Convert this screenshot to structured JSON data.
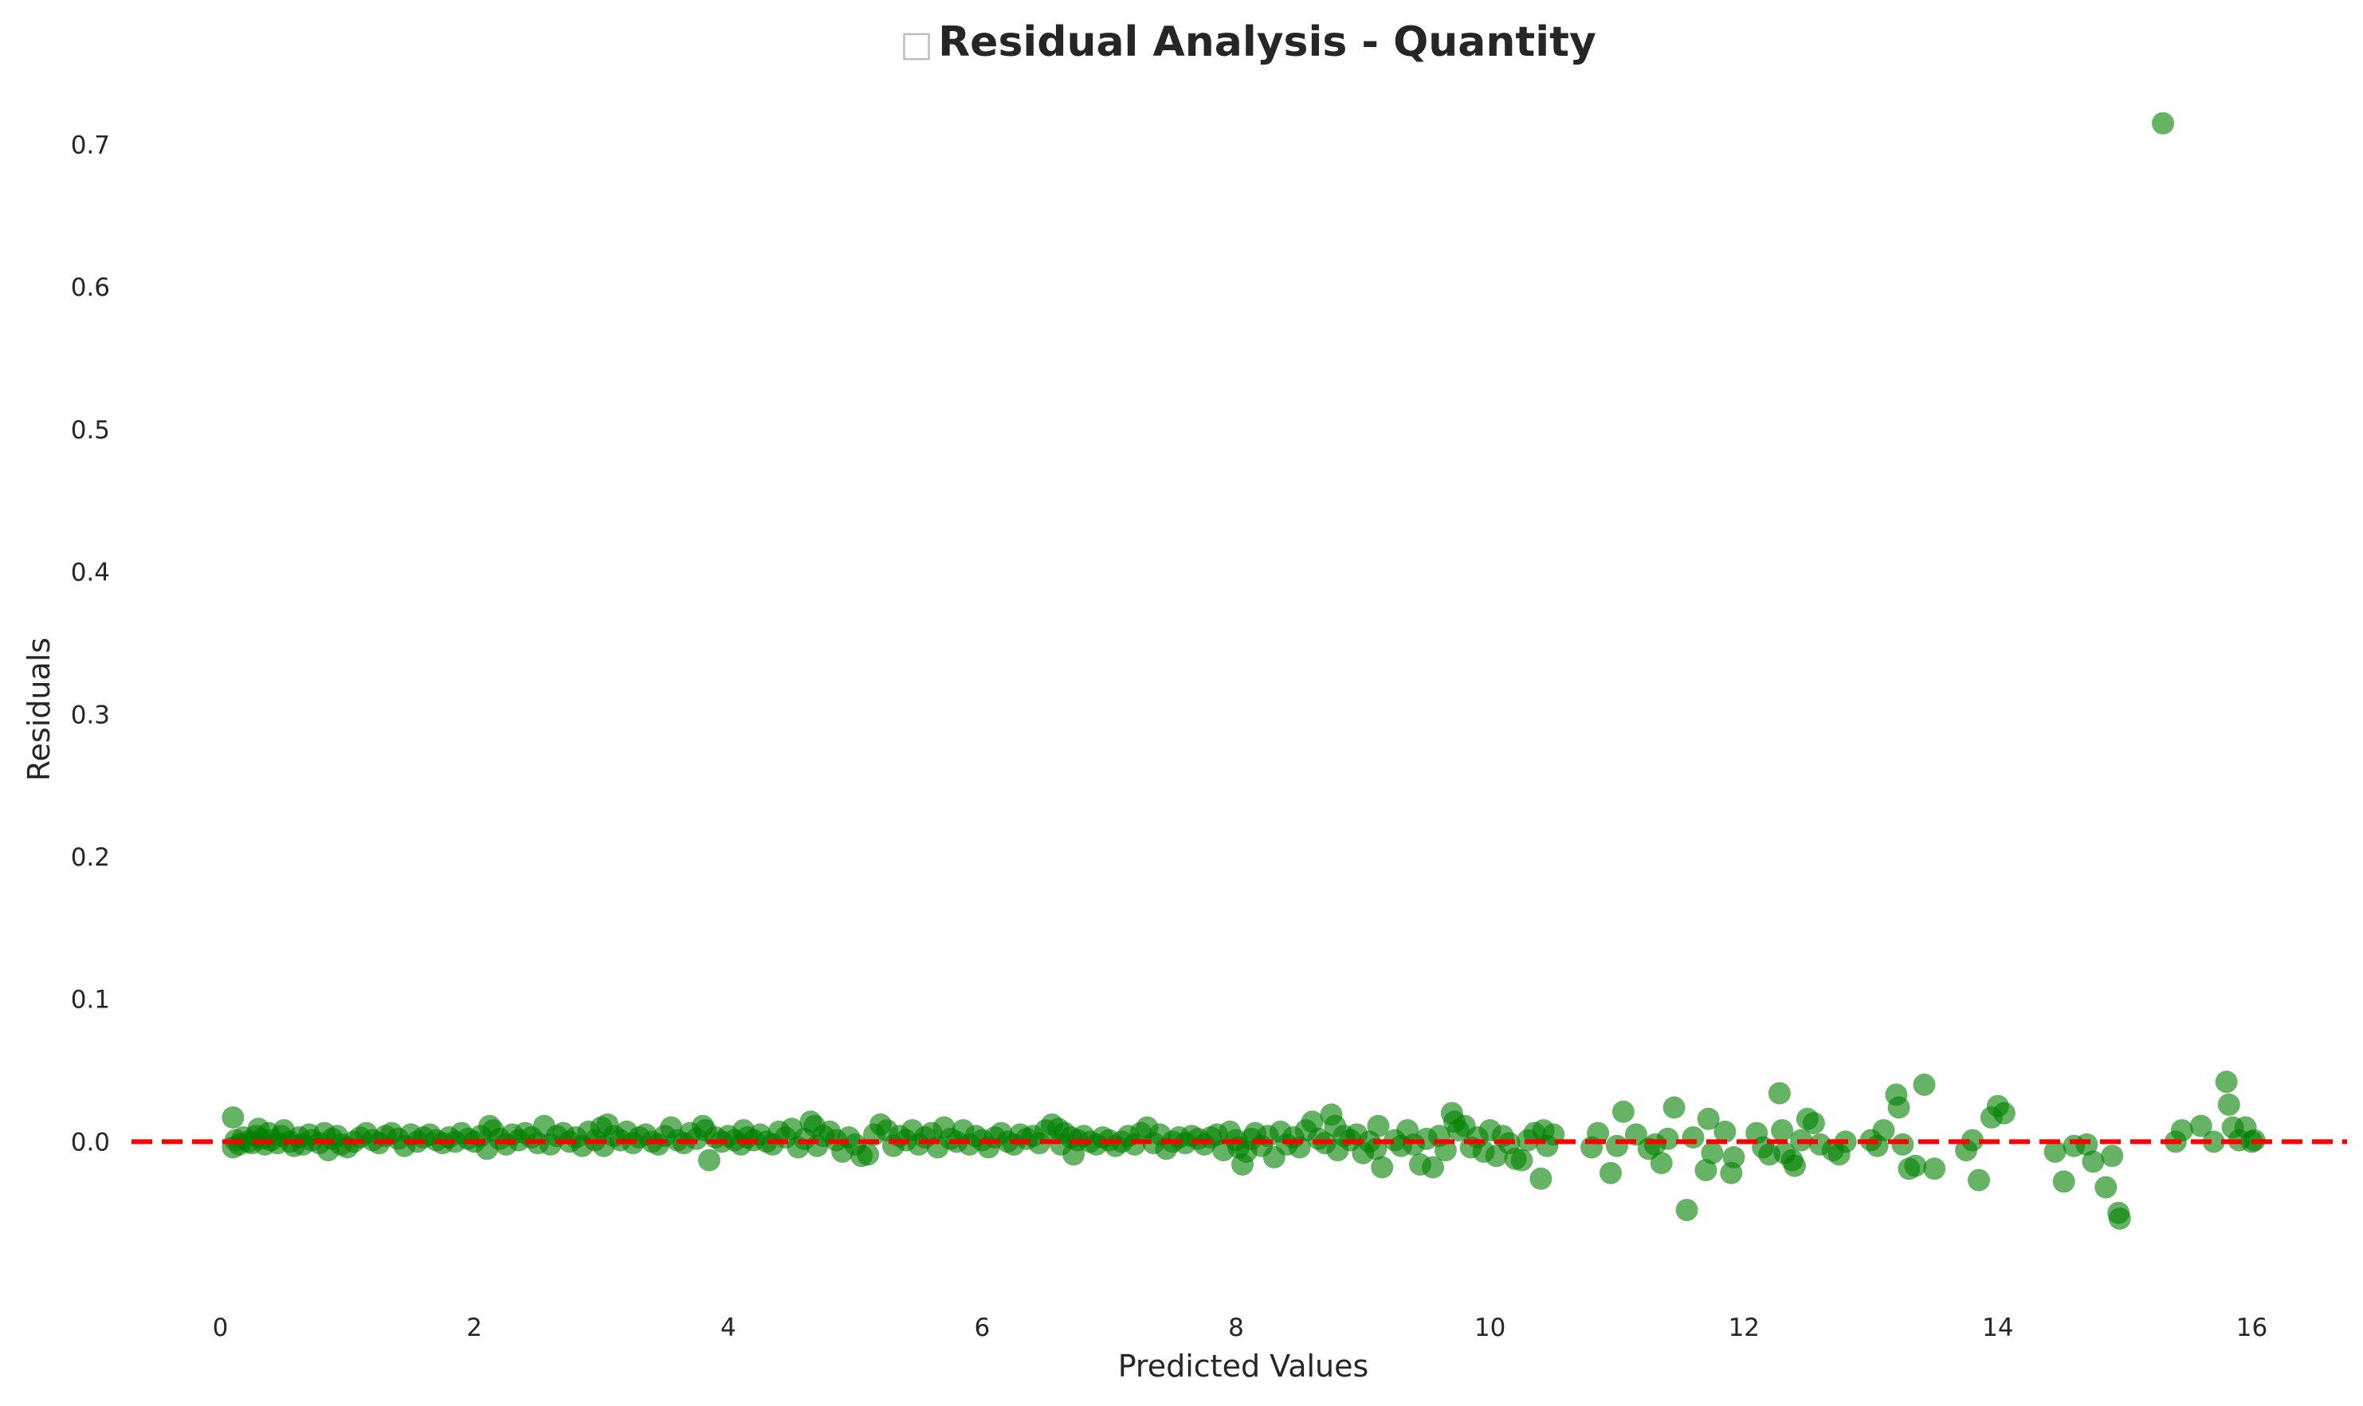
{
  "chart_data": {
    "type": "scatter",
    "title": "Residual Analysis - Quantity",
    "title_icon": "placeholder-box-icon",
    "xlabel": "Predicted Values",
    "ylabel": "Residuals",
    "xlim": [
      -0.7,
      16.75
    ],
    "ylim": [
      -0.105,
      0.74
    ],
    "xticks": [
      0,
      2,
      4,
      6,
      8,
      10,
      12,
      14,
      16
    ],
    "yticks": [
      0.0,
      0.1,
      0.2,
      0.3,
      0.4,
      0.5,
      0.6,
      0.7
    ],
    "ytick_labels": [
      "0.0",
      "0.1",
      "0.2",
      "0.3",
      "0.4",
      "0.5",
      "0.6",
      "0.7"
    ],
    "grid": false,
    "legend": "none",
    "point_color": "#008000",
    "point_opacity": 0.6,
    "reference_line": {
      "y": 0,
      "style": "dashed",
      "color": "#ff0000"
    },
    "points": [
      [
        0.1,
        0.017
      ],
      [
        0.1,
        -0.004
      ],
      [
        0.12,
        0.001
      ],
      [
        0.15,
        -0.002
      ],
      [
        0.18,
        0.003
      ],
      [
        0.22,
        0.0
      ],
      [
        0.25,
        -0.001
      ],
      [
        0.28,
        0.004
      ],
      [
        0.3,
        0.009
      ],
      [
        0.32,
        0.002
      ],
      [
        0.35,
        -0.002
      ],
      [
        0.38,
        0.006
      ],
      [
        0.4,
        0.001
      ],
      [
        0.45,
        -0.001
      ],
      [
        0.48,
        0.004
      ],
      [
        0.5,
        0.008
      ],
      [
        0.55,
        0.0
      ],
      [
        0.58,
        -0.003
      ],
      [
        0.62,
        0.003
      ],
      [
        0.65,
        -0.002
      ],
      [
        0.7,
        0.005
      ],
      [
        0.72,
        0.001
      ],
      [
        0.78,
        -0.001
      ],
      [
        0.82,
        0.006
      ],
      [
        0.85,
        -0.006
      ],
      [
        0.88,
        0.002
      ],
      [
        0.92,
        0.004
      ],
      [
        0.95,
        -0.002
      ],
      [
        1.0,
        -0.004
      ],
      [
        1.05,
        0.0
      ],
      [
        1.1,
        0.003
      ],
      [
        1.15,
        0.006
      ],
      [
        1.2,
        0.001
      ],
      [
        1.25,
        -0.001
      ],
      [
        1.3,
        0.004
      ],
      [
        1.35,
        0.006
      ],
      [
        1.4,
        0.002
      ],
      [
        1.45,
        -0.003
      ],
      [
        1.5,
        0.005
      ],
      [
        1.55,
        0.0
      ],
      [
        1.6,
        0.003
      ],
      [
        1.65,
        0.005
      ],
      [
        1.7,
        0.001
      ],
      [
        1.75,
        -0.001
      ],
      [
        1.8,
        0.003
      ],
      [
        1.85,
        0.0
      ],
      [
        1.9,
        0.006
      ],
      [
        1.95,
        0.002
      ],
      [
        2.0,
        0.0
      ],
      [
        2.05,
        0.004
      ],
      [
        2.1,
        -0.005
      ],
      [
        2.12,
        0.011
      ],
      [
        2.15,
        0.008
      ],
      [
        2.2,
        0.002
      ],
      [
        2.25,
        -0.002
      ],
      [
        2.3,
        0.005
      ],
      [
        2.35,
        0.001
      ],
      [
        2.4,
        0.006
      ],
      [
        2.45,
        0.003
      ],
      [
        2.5,
        -0.001
      ],
      [
        2.55,
        0.011
      ],
      [
        2.6,
        -0.002
      ],
      [
        2.65,
        0.004
      ],
      [
        2.7,
        0.006
      ],
      [
        2.75,
        0.0
      ],
      [
        2.8,
        0.003
      ],
      [
        2.85,
        -0.003
      ],
      [
        2.9,
        0.007
      ],
      [
        2.95,
        0.001
      ],
      [
        3.0,
        0.01
      ],
      [
        3.02,
        -0.003
      ],
      [
        3.05,
        0.012
      ],
      [
        3.1,
        0.004
      ],
      [
        3.15,
        0.001
      ],
      [
        3.2,
        0.007
      ],
      [
        3.25,
        -0.001
      ],
      [
        3.3,
        0.003
      ],
      [
        3.35,
        0.005
      ],
      [
        3.4,
        0.0
      ],
      [
        3.45,
        -0.002
      ],
      [
        3.5,
        0.004
      ],
      [
        3.55,
        0.01
      ],
      [
        3.6,
        0.001
      ],
      [
        3.65,
        -0.001
      ],
      [
        3.7,
        0.006
      ],
      [
        3.75,
        0.002
      ],
      [
        3.8,
        0.011
      ],
      [
        3.82,
        0.008
      ],
      [
        3.85,
        -0.013
      ],
      [
        3.9,
        0.003
      ],
      [
        3.95,
        0.0
      ],
      [
        4.0,
        0.004
      ],
      [
        4.05,
        0.001
      ],
      [
        4.1,
        -0.002
      ],
      [
        4.12,
        0.008
      ],
      [
        4.15,
        0.003
      ],
      [
        4.2,
        0.001
      ],
      [
        4.25,
        0.005
      ],
      [
        4.3,
        0.0
      ],
      [
        4.35,
        -0.002
      ],
      [
        4.4,
        0.007
      ],
      [
        4.45,
        0.003
      ],
      [
        4.5,
        0.009
      ],
      [
        4.55,
        -0.004
      ],
      [
        4.6,
        0.002
      ],
      [
        4.65,
        0.014
      ],
      [
        4.68,
        0.011
      ],
      [
        4.7,
        -0.003
      ],
      [
        4.75,
        0.004
      ],
      [
        4.8,
        0.007
      ],
      [
        4.85,
        0.001
      ],
      [
        4.9,
        -0.007
      ],
      [
        4.95,
        0.003
      ],
      [
        5.0,
        -0.002
      ],
      [
        5.05,
        -0.01
      ],
      [
        5.1,
        -0.009
      ],
      [
        5.15,
        0.005
      ],
      [
        5.2,
        0.012
      ],
      [
        5.25,
        0.008
      ],
      [
        5.3,
        -0.003
      ],
      [
        5.35,
        0.004
      ],
      [
        5.4,
        0.001
      ],
      [
        5.45,
        0.008
      ],
      [
        5.5,
        -0.002
      ],
      [
        5.55,
        0.003
      ],
      [
        5.6,
        0.006
      ],
      [
        5.65,
        -0.004
      ],
      [
        5.7,
        0.01
      ],
      [
        5.75,
        0.002
      ],
      [
        5.8,
        0.0
      ],
      [
        5.85,
        0.008
      ],
      [
        5.9,
        -0.002
      ],
      [
        5.95,
        0.004
      ],
      [
        6.0,
        0.001
      ],
      [
        6.05,
        -0.004
      ],
      [
        6.1,
        0.003
      ],
      [
        6.15,
        0.006
      ],
      [
        6.2,
        0.0
      ],
      [
        6.25,
        -0.002
      ],
      [
        6.3,
        0.005
      ],
      [
        6.35,
        0.002
      ],
      [
        6.4,
        0.004
      ],
      [
        6.45,
        -0.001
      ],
      [
        6.5,
        0.008
      ],
      [
        6.55,
        0.012
      ],
      [
        6.6,
        0.009
      ],
      [
        6.62,
        -0.002
      ],
      [
        6.65,
        0.006
      ],
      [
        6.7,
        0.003
      ],
      [
        6.72,
        -0.009
      ],
      [
        6.75,
        0.001
      ],
      [
        6.8,
        0.004
      ],
      [
        6.85,
        0.0
      ],
      [
        6.9,
        -0.002
      ],
      [
        6.95,
        0.003
      ],
      [
        7.0,
        0.001
      ],
      [
        7.05,
        -0.003
      ],
      [
        7.1,
        0.0
      ],
      [
        7.15,
        0.004
      ],
      [
        7.2,
        -0.002
      ],
      [
        7.25,
        0.006
      ],
      [
        7.3,
        0.01
      ],
      [
        7.35,
        -0.001
      ],
      [
        7.4,
        0.005
      ],
      [
        7.45,
        -0.005
      ],
      [
        7.5,
        0.0
      ],
      [
        7.55,
        0.003
      ],
      [
        7.6,
        -0.001
      ],
      [
        7.65,
        0.004
      ],
      [
        7.7,
        0.002
      ],
      [
        7.75,
        -0.002
      ],
      [
        7.8,
        0.003
      ],
      [
        7.85,
        0.005
      ],
      [
        7.9,
        -0.006
      ],
      [
        7.95,
        0.007
      ],
      [
        8.0,
        0.001
      ],
      [
        8.02,
        -0.004
      ],
      [
        8.05,
        -0.016
      ],
      [
        8.08,
        -0.007
      ],
      [
        8.12,
        0.002
      ],
      [
        8.15,
        0.006
      ],
      [
        8.2,
        -0.003
      ],
      [
        8.25,
        0.004
      ],
      [
        8.3,
        -0.011
      ],
      [
        8.35,
        0.007
      ],
      [
        8.4,
        -0.002
      ],
      [
        8.45,
        0.003
      ],
      [
        8.5,
        -0.004
      ],
      [
        8.55,
        0.008
      ],
      [
        8.6,
        0.014
      ],
      [
        8.65,
        0.002
      ],
      [
        8.7,
        -0.001
      ],
      [
        8.75,
        0.019
      ],
      [
        8.78,
        0.011
      ],
      [
        8.8,
        -0.006
      ],
      [
        8.85,
        0.004
      ],
      [
        8.9,
        0.001
      ],
      [
        8.95,
        0.005
      ],
      [
        9.0,
        -0.008
      ],
      [
        9.05,
        0.0
      ],
      [
        9.1,
        -0.005
      ],
      [
        9.12,
        0.011
      ],
      [
        9.15,
        -0.018
      ],
      [
        9.25,
        0.001
      ],
      [
        9.3,
        -0.003
      ],
      [
        9.35,
        0.008
      ],
      [
        9.4,
        -0.002
      ],
      [
        9.45,
        -0.016
      ],
      [
        9.5,
        0.002
      ],
      [
        9.55,
        -0.018
      ],
      [
        9.6,
        0.004
      ],
      [
        9.65,
        -0.006
      ],
      [
        9.7,
        0.02
      ],
      [
        9.72,
        0.014
      ],
      [
        9.75,
        0.008
      ],
      [
        9.8,
        0.011
      ],
      [
        9.85,
        -0.004
      ],
      [
        9.9,
        0.003
      ],
      [
        9.95,
        -0.007
      ],
      [
        10.0,
        0.008
      ],
      [
        10.05,
        -0.01
      ],
      [
        10.1,
        0.004
      ],
      [
        10.15,
        -0.001
      ],
      [
        10.2,
        -0.012
      ],
      [
        10.25,
        -0.013
      ],
      [
        10.3,
        0.001
      ],
      [
        10.35,
        0.006
      ],
      [
        10.4,
        -0.026
      ],
      [
        10.42,
        0.008
      ],
      [
        10.45,
        -0.003
      ],
      [
        10.5,
        0.005
      ],
      [
        10.8,
        -0.004
      ],
      [
        10.85,
        0.006
      ],
      [
        10.95,
        -0.022
      ],
      [
        11.0,
        -0.003
      ],
      [
        11.05,
        0.021
      ],
      [
        11.15,
        0.005
      ],
      [
        11.25,
        -0.005
      ],
      [
        11.3,
        -0.002
      ],
      [
        11.35,
        -0.015
      ],
      [
        11.4,
        0.002
      ],
      [
        11.45,
        0.024
      ],
      [
        11.55,
        -0.048
      ],
      [
        11.6,
        0.003
      ],
      [
        11.7,
        -0.02
      ],
      [
        11.72,
        0.016
      ],
      [
        11.75,
        -0.008
      ],
      [
        11.85,
        0.007
      ],
      [
        11.9,
        -0.022
      ],
      [
        11.92,
        -0.011
      ],
      [
        12.1,
        0.006
      ],
      [
        12.15,
        -0.004
      ],
      [
        12.2,
        -0.009
      ],
      [
        12.28,
        0.034
      ],
      [
        12.3,
        0.008
      ],
      [
        12.32,
        -0.008
      ],
      [
        12.38,
        -0.013
      ],
      [
        12.4,
        -0.017
      ],
      [
        12.45,
        0.001
      ],
      [
        12.5,
        0.016
      ],
      [
        12.55,
        0.013
      ],
      [
        12.6,
        -0.002
      ],
      [
        12.7,
        -0.006
      ],
      [
        12.75,
        -0.009
      ],
      [
        12.8,
        0.0
      ],
      [
        13.0,
        0.001
      ],
      [
        13.05,
        -0.003
      ],
      [
        13.1,
        0.008
      ],
      [
        13.2,
        0.033
      ],
      [
        13.22,
        0.024
      ],
      [
        13.25,
        -0.002
      ],
      [
        13.3,
        -0.019
      ],
      [
        13.35,
        -0.017
      ],
      [
        13.42,
        0.04
      ],
      [
        13.5,
        -0.019
      ],
      [
        13.75,
        -0.006
      ],
      [
        13.8,
        0.001
      ],
      [
        13.85,
        -0.027
      ],
      [
        13.95,
        0.017
      ],
      [
        14.0,
        0.025
      ],
      [
        14.05,
        0.02
      ],
      [
        14.45,
        -0.007
      ],
      [
        14.52,
        -0.028
      ],
      [
        14.6,
        -0.003
      ],
      [
        14.7,
        -0.002
      ],
      [
        14.75,
        -0.014
      ],
      [
        14.85,
        -0.032
      ],
      [
        14.9,
        -0.01
      ],
      [
        14.95,
        -0.05
      ],
      [
        14.96,
        -0.054
      ],
      [
        15.3,
        0.715
      ],
      [
        15.4,
        0.0
      ],
      [
        15.45,
        0.008
      ],
      [
        15.6,
        0.011
      ],
      [
        15.7,
        0.0
      ],
      [
        15.8,
        0.042
      ],
      [
        15.82,
        0.026
      ],
      [
        15.85,
        0.01
      ],
      [
        15.9,
        0.001
      ],
      [
        15.95,
        0.01
      ],
      [
        16.0,
        0.0
      ],
      [
        16.02,
        0.001
      ]
    ]
  }
}
